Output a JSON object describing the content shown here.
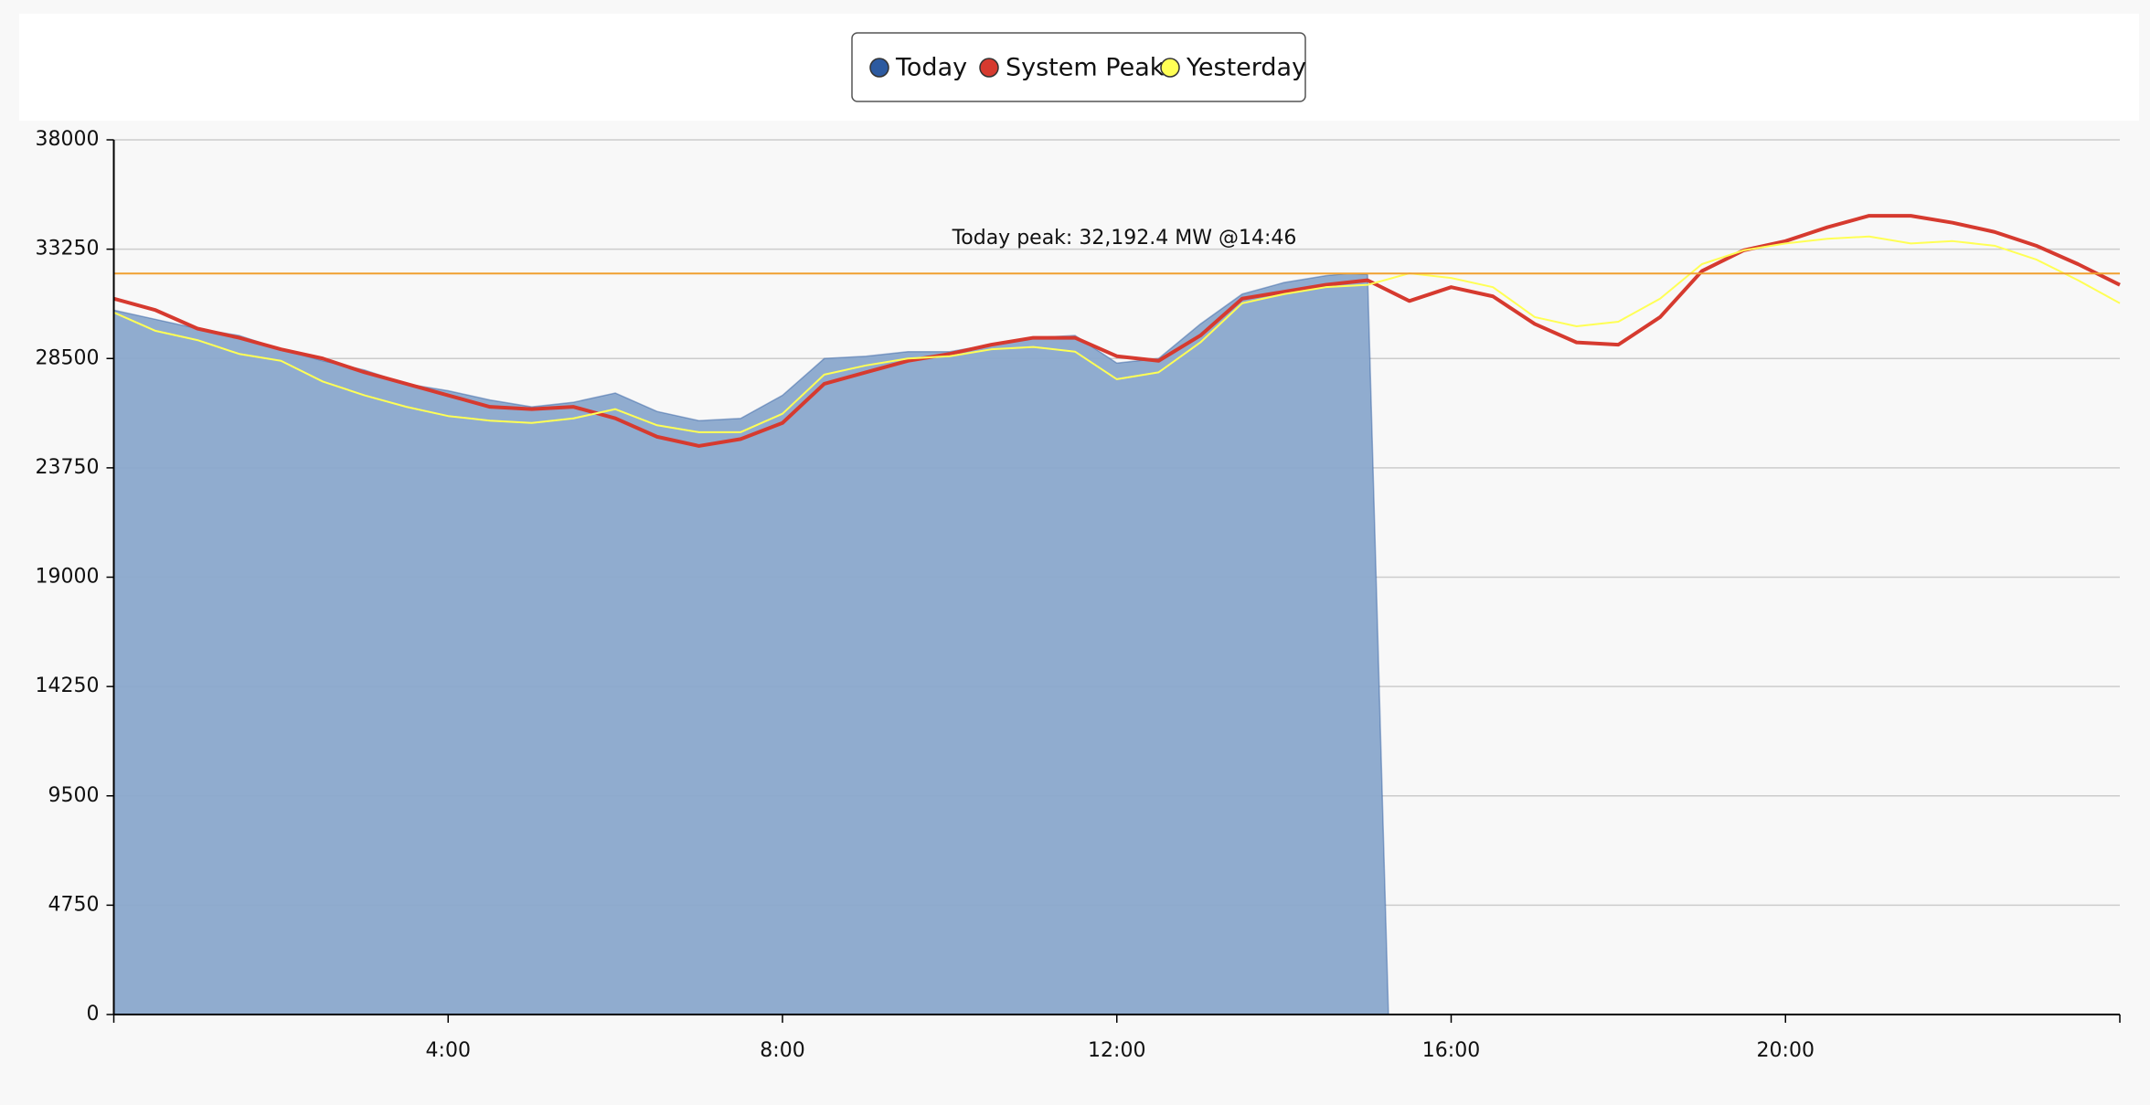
{
  "chart_data": {
    "type": "area",
    "xlim": [
      0,
      24
    ],
    "xticks": [
      {
        "value": 4,
        "label": "4:00"
      },
      {
        "value": 8,
        "label": "8:00"
      },
      {
        "value": 12,
        "label": "12:00"
      },
      {
        "value": 16,
        "label": "16:00"
      },
      {
        "value": 20,
        "label": "20:00"
      }
    ],
    "ylim": [
      0,
      38000
    ],
    "yticks": [
      0,
      4750,
      9500,
      14250,
      19000,
      23750,
      28500,
      33250,
      38000
    ],
    "grid": true,
    "legend": "top",
    "annotations": [
      {
        "text": "Today peak: 32,192.4 MW @14:46",
        "value": 32192.4,
        "color": "#f0a030"
      }
    ],
    "series": [
      {
        "name": "Today",
        "color": "#2c5aa0",
        "fill": "#8aa8cc",
        "kind": "area",
        "x": [
          0,
          0.5,
          1,
          1.5,
          2,
          2.5,
          3,
          3.5,
          4,
          4.5,
          5,
          5.5,
          6,
          6.5,
          7,
          7.5,
          8,
          8.5,
          9,
          9.5,
          10,
          10.5,
          11,
          11.5,
          12,
          12.5,
          13,
          13.5,
          14,
          14.5,
          14.77,
          15,
          15.25
        ],
        "values": [
          30600,
          30200,
          29800,
          29500,
          28900,
          28400,
          28000,
          27400,
          27100,
          26700,
          26400,
          26600,
          27000,
          26200,
          25800,
          25900,
          26900,
          28500,
          28600,
          28800,
          28800,
          29100,
          29400,
          29500,
          28300,
          28500,
          30000,
          31300,
          31800,
          32100,
          32192.4,
          32150,
          0
        ]
      },
      {
        "name": "System Peak",
        "color": "#d63a2f",
        "kind": "line",
        "x": [
          0,
          0.5,
          1,
          1.5,
          2,
          2.5,
          3,
          3.5,
          4,
          4.5,
          5,
          5.5,
          6,
          6.5,
          7,
          7.5,
          8,
          8.5,
          9,
          9.5,
          10,
          10.5,
          11,
          11.5,
          12,
          12.5,
          13,
          13.5,
          14,
          14.5,
          15,
          15.5,
          16,
          16.5,
          17,
          17.5,
          18,
          18.5,
          19,
          19.5,
          20,
          20.5,
          21,
          21.5,
          22,
          22.5,
          23,
          23.5,
          24
        ],
        "values": [
          31100,
          30600,
          29800,
          29400,
          28900,
          28500,
          27900,
          27400,
          26900,
          26400,
          26300,
          26400,
          25900,
          25100,
          24700,
          25000,
          25700,
          27400,
          27900,
          28400,
          28700,
          29100,
          29400,
          29400,
          28600,
          28400,
          29500,
          31100,
          31400,
          31700,
          31900,
          31000,
          31600,
          31200,
          30000,
          29200,
          29100,
          30300,
          32300,
          33200,
          33600,
          34200,
          34700,
          34700,
          34400,
          34000,
          33400,
          32600,
          31700
        ]
      },
      {
        "name": "Yesterday",
        "color": "#ffff55",
        "kind": "line",
        "x": [
          0,
          0.5,
          1,
          1.5,
          2,
          2.5,
          3,
          3.5,
          4,
          4.5,
          5,
          5.5,
          6,
          6.5,
          7,
          7.5,
          8,
          8.5,
          9,
          9.5,
          10,
          10.5,
          11,
          11.5,
          12,
          12.5,
          13,
          13.5,
          14,
          14.5,
          15,
          15.5,
          16,
          16.5,
          17,
          17.5,
          18,
          18.5,
          19,
          19.5,
          20,
          20.5,
          21,
          21.5,
          22,
          22.5,
          23,
          23.5,
          24
        ],
        "values": [
          30500,
          29700,
          29300,
          28700,
          28400,
          27500,
          26900,
          26400,
          26000,
          25800,
          25700,
          25900,
          26300,
          25600,
          25300,
          25300,
          26100,
          27800,
          28200,
          28500,
          28600,
          28900,
          29000,
          28800,
          27600,
          27900,
          29200,
          30900,
          31300,
          31600,
          31700,
          32200,
          32000,
          31600,
          30300,
          29900,
          30100,
          31100,
          32600,
          33200,
          33500,
          33700,
          33800,
          33500,
          33600,
          33400,
          32800,
          31900,
          30900
        ]
      }
    ]
  }
}
